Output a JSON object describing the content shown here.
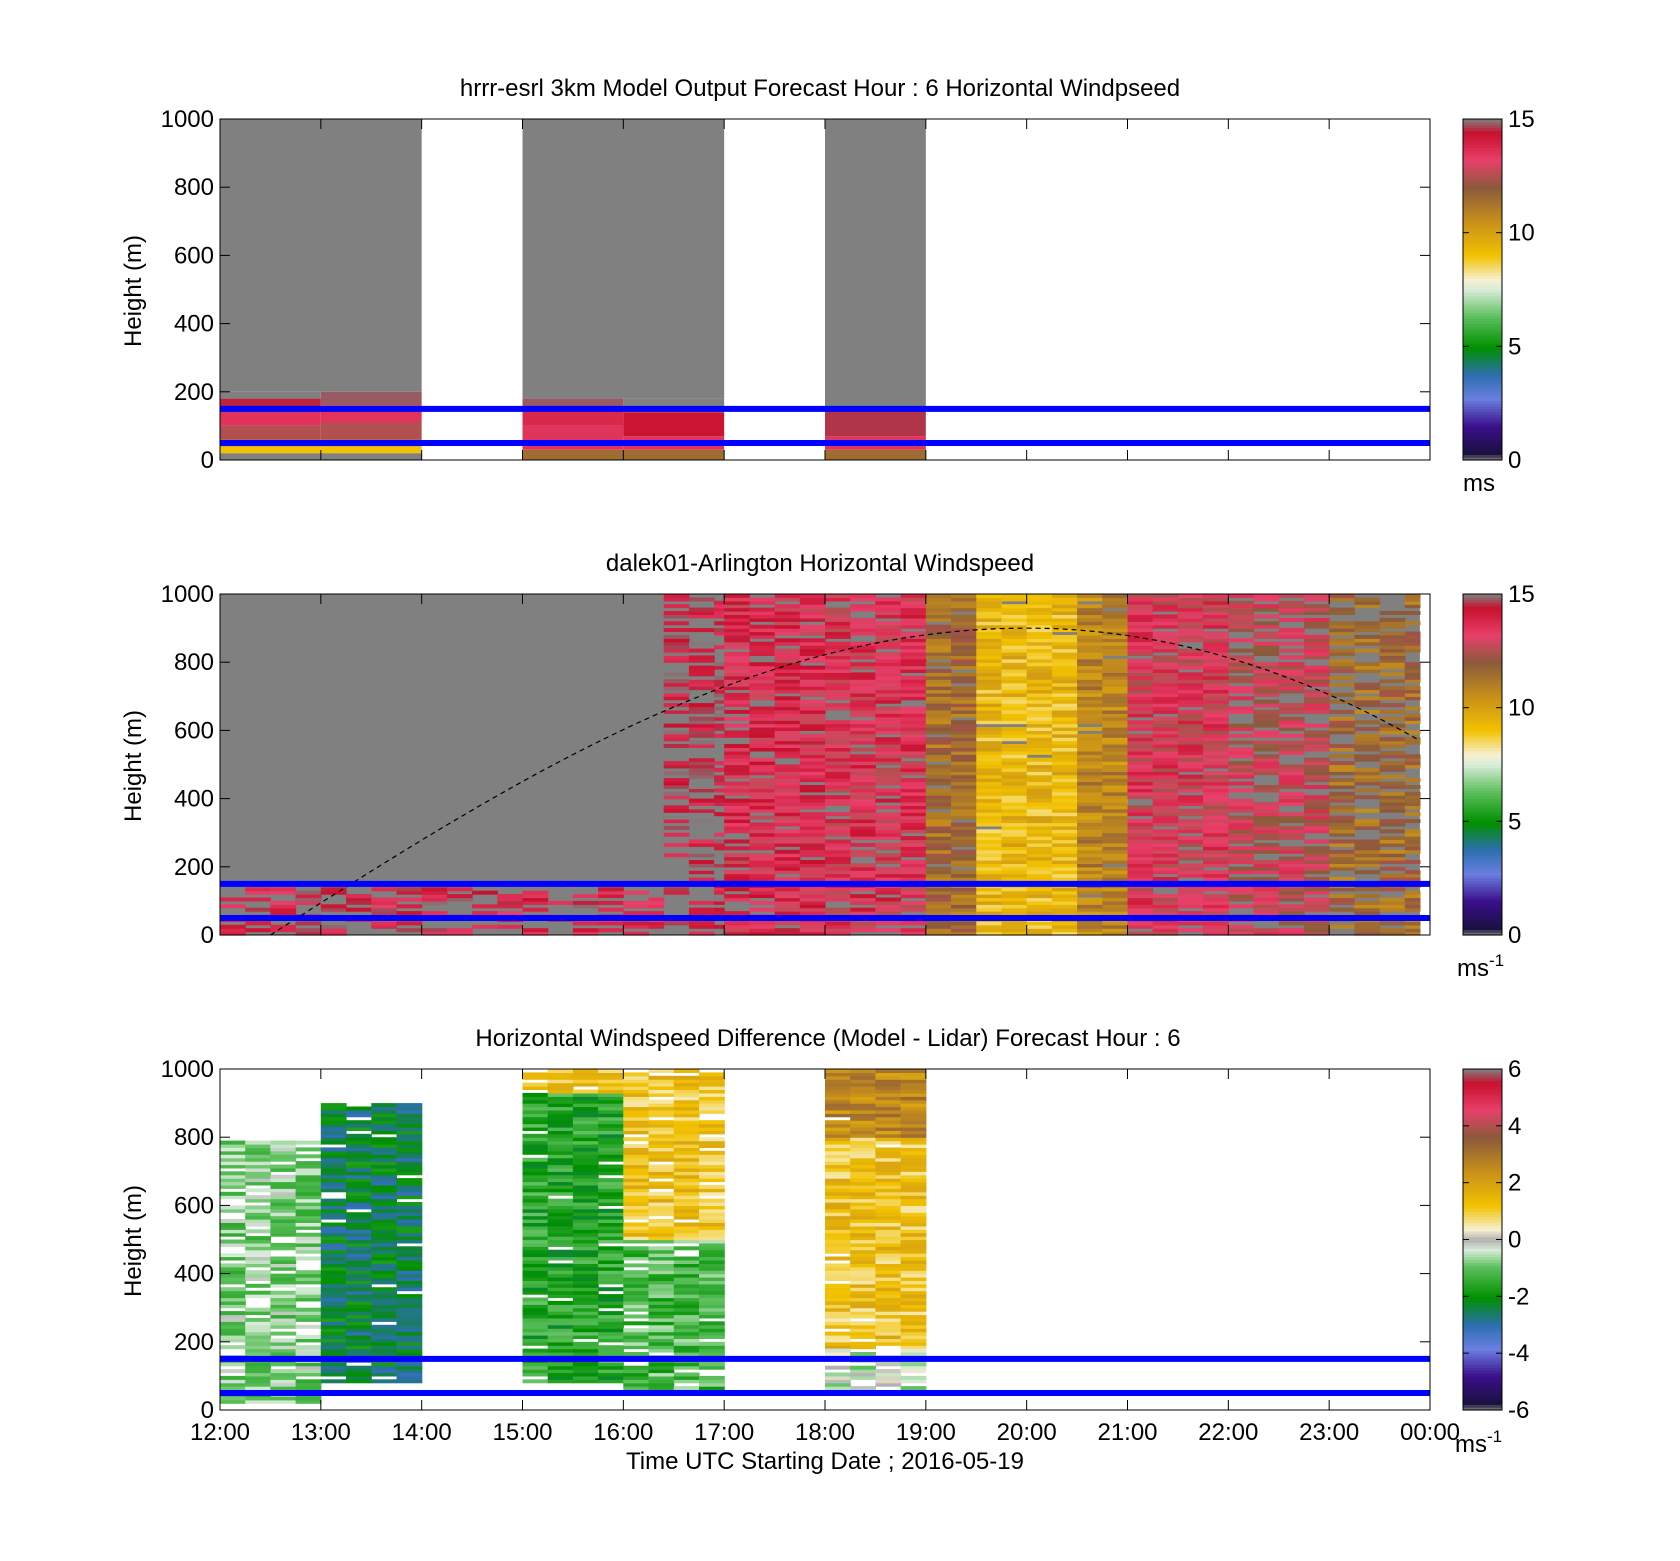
{
  "chart_data": [
    {
      "type": "heatmap",
      "title": "hrrr-esrl 3km Model Output   Forecast Hour : 6 Horizontal Windpseed",
      "ylabel": "Height (m)",
      "ylim": [
        0,
        1000
      ],
      "yticks": [
        "0",
        "200",
        "400",
        "600",
        "800",
        "1000"
      ],
      "xlim": [
        "12:00",
        "00:00"
      ],
      "missing_color": "#808080",
      "colorbar": {
        "range": [
          0,
          15
        ],
        "ticks": [
          "0",
          "5",
          "10",
          "15"
        ],
        "unit": "ms",
        "unit_sup": "",
        "stops": [
          [
            "#808080",
            0
          ],
          [
            "#1a1040",
            0.02
          ],
          [
            "#3b0f8c",
            0.1
          ],
          [
            "#6a7fe0",
            0.18
          ],
          [
            "#2c6fb0",
            0.25
          ],
          [
            "#009000",
            0.33
          ],
          [
            "#5cbf5c",
            0.42
          ],
          [
            "#d9ecd9",
            0.5
          ],
          [
            "#f7f0d0",
            0.53
          ],
          [
            "#f2c200",
            0.6
          ],
          [
            "#c8901a",
            0.7
          ],
          [
            "#8b5a3c",
            0.8
          ],
          [
            "#e8406a",
            0.88
          ],
          [
            "#c8102e",
            0.96
          ],
          [
            "#808080",
            1
          ]
        ]
      },
      "reference_lines_m": [
        50,
        150
      ],
      "cells": [
        {
          "t0": 0,
          "t1": 1,
          "h0": 0,
          "h1": 20,
          "v": 0
        },
        {
          "t0": 0,
          "t1": 1,
          "h0": 20,
          "h1": 40,
          "v": 9
        },
        {
          "t0": 0,
          "t1": 1,
          "h0": 40,
          "h1": 60,
          "v": 11
        },
        {
          "t0": 0,
          "t1": 1,
          "h0": 60,
          "h1": 100,
          "v": 12.5
        },
        {
          "t0": 0,
          "t1": 1,
          "h0": 100,
          "h1": 150,
          "v": 13.5
        },
        {
          "t0": 0,
          "t1": 1,
          "h0": 150,
          "h1": 180,
          "v": 14.5
        },
        {
          "t0": 1,
          "t1": 2,
          "h0": 0,
          "h1": 20,
          "v": 0
        },
        {
          "t0": 1,
          "t1": 2,
          "h0": 20,
          "h1": 40,
          "v": 9
        },
        {
          "t0": 1,
          "t1": 2,
          "h0": 40,
          "h1": 60,
          "v": 11
        },
        {
          "t0": 1,
          "t1": 2,
          "h0": 60,
          "h1": 110,
          "v": 12.5
        },
        {
          "t0": 1,
          "t1": 2,
          "h0": 110,
          "h1": 160,
          "v": 13.5
        },
        {
          "t0": 1,
          "t1": 2,
          "h0": 160,
          "h1": 200,
          "v": 14.8
        },
        {
          "t0": 3,
          "t1": 4,
          "h0": 0,
          "h1": 30,
          "v": 11.5
        },
        {
          "t0": 3,
          "t1": 4,
          "h0": 30,
          "h1": 100,
          "v": 13.5
        },
        {
          "t0": 3,
          "t1": 4,
          "h0": 100,
          "h1": 150,
          "v": 13.8
        },
        {
          "t0": 3,
          "t1": 4,
          "h0": 150,
          "h1": 180,
          "v": 14.8
        },
        {
          "t0": 4,
          "t1": 5,
          "h0": 0,
          "h1": 30,
          "v": 11.5
        },
        {
          "t0": 4,
          "t1": 5,
          "h0": 30,
          "h1": 70,
          "v": 13.5
        },
        {
          "t0": 4,
          "t1": 5,
          "h0": 70,
          "h1": 140,
          "v": 14.3
        },
        {
          "t0": 6,
          "t1": 7,
          "h0": 0,
          "h1": 30,
          "v": 11.5
        },
        {
          "t0": 6,
          "t1": 7,
          "h0": 30,
          "h1": 70,
          "v": 13.5
        },
        {
          "t0": 6,
          "t1": 7,
          "h0": 70,
          "h1": 150,
          "v": 14.6
        }
      ],
      "missing_blocks": [
        {
          "t0": 0,
          "t1": 2,
          "h0": 200,
          "h1": 1000
        },
        {
          "t0": 0,
          "t1": 1,
          "h0": 180,
          "h1": 200
        },
        {
          "t0": 3,
          "t1": 5,
          "h0": 180,
          "h1": 1000
        },
        {
          "t0": 4,
          "t1": 5,
          "h0": 140,
          "h1": 180
        },
        {
          "t0": 6,
          "t1": 7,
          "h0": 150,
          "h1": 1000
        }
      ]
    },
    {
      "type": "heatmap",
      "title": "dalek01-Arlington  Horizontal Windspeed",
      "ylabel": "Height (m)",
      "ylim": [
        0,
        1000
      ],
      "yticks": [
        "0",
        "200",
        "400",
        "600",
        "800",
        "1000"
      ],
      "xlim": [
        "12:00",
        "00:00"
      ],
      "missing_color": "#808080",
      "colorbar": {
        "range": [
          0,
          15
        ],
        "ticks": [
          "0",
          "5",
          "10",
          "15"
        ],
        "unit": "ms",
        "unit_sup": "-1",
        "stops": [
          [
            "#808080",
            0
          ],
          [
            "#1a1040",
            0.02
          ],
          [
            "#3b0f8c",
            0.1
          ],
          [
            "#6a7fe0",
            0.18
          ],
          [
            "#2c6fb0",
            0.25
          ],
          [
            "#009000",
            0.33
          ],
          [
            "#5cbf5c",
            0.42
          ],
          [
            "#d9ecd9",
            0.5
          ],
          [
            "#f7f0d0",
            0.53
          ],
          [
            "#f2c200",
            0.6
          ],
          [
            "#c8901a",
            0.7
          ],
          [
            "#8b5a3c",
            0.8
          ],
          [
            "#e8406a",
            0.88
          ],
          [
            "#c8102e",
            0.96
          ],
          [
            "#808080",
            1
          ]
        ]
      },
      "reference_lines_m": [
        50,
        150
      ],
      "boundary_layer_curve": {
        "peak_time_h": 8,
        "peak_height_m": 900,
        "end_height_m": 570
      },
      "columns": [
        {
          "t0": 0,
          "t1": 4.4,
          "h0": 0,
          "h1": 140,
          "v": 14,
          "sparse": 0.5
        },
        {
          "t0": 4.4,
          "t1": 5.0,
          "h0": 0,
          "h1": 1000,
          "v": 14.3,
          "sparse": 0.45
        },
        {
          "t0": 5.0,
          "t1": 6.0,
          "h0": 0,
          "h1": 1000,
          "v": 13.6,
          "sparse": 0.15
        },
        {
          "t0": 6.0,
          "t1": 7.0,
          "h0": 0,
          "h1": 1000,
          "v": 13.4,
          "sparse": 0.15
        },
        {
          "t0": 7.0,
          "t1": 7.5,
          "h0": 0,
          "h1": 1000,
          "v": 11.5,
          "sparse": 0.05
        },
        {
          "t0": 7.5,
          "t1": 8.5,
          "h0": 0,
          "h1": 1000,
          "v": 9.3,
          "sparse": 0.02
        },
        {
          "t0": 8.5,
          "t1": 9.0,
          "h0": 0,
          "h1": 1000,
          "v": 10.8,
          "sparse": 0.05
        },
        {
          "t0": 9.0,
          "t1": 10.0,
          "h0": 0,
          "h1": 1000,
          "v": 13.2,
          "sparse": 0.1
        },
        {
          "t0": 10.0,
          "t1": 11.0,
          "h0": 0,
          "h1": 1000,
          "v": 12.8,
          "sparse": 0.25
        },
        {
          "t0": 11.0,
          "t1": 11.9,
          "h0": 0,
          "h1": 1000,
          "v": 11.5,
          "sparse": 0.35
        }
      ]
    },
    {
      "type": "heatmap",
      "title": "Horizontal Windspeed Difference (Model - Lidar) Forecast Hour : 6",
      "ylabel": "Height (m)",
      "xlabel": "Time UTC  Starting Date ; 2016-05-19",
      "ylim": [
        0,
        1000
      ],
      "yticks": [
        "0",
        "200",
        "400",
        "600",
        "800",
        "1000"
      ],
      "xticks": [
        "12:00",
        "13:00",
        "14:00",
        "15:00",
        "16:00",
        "17:00",
        "18:00",
        "19:00",
        "20:00",
        "21:00",
        "22:00",
        "23:00",
        "00:00"
      ],
      "missing_color": "#808080",
      "colorbar": {
        "range": [
          -6,
          6
        ],
        "ticks": [
          "-6",
          "-4",
          "-2",
          "0",
          "2",
          "4",
          "6"
        ],
        "unit": "ms",
        "unit_sup": "-1",
        "stops": [
          [
            "#808080",
            0
          ],
          [
            "#1a1040",
            0.02
          ],
          [
            "#3b0f8c",
            0.1
          ],
          [
            "#6a7fe0",
            0.18
          ],
          [
            "#2c6fb0",
            0.25
          ],
          [
            "#009000",
            0.33
          ],
          [
            "#5cbf5c",
            0.42
          ],
          [
            "#d9ecd9",
            0.47
          ],
          [
            "#b0b0b0",
            0.5
          ],
          [
            "#f7f0d0",
            0.53
          ],
          [
            "#f2c200",
            0.6
          ],
          [
            "#c8901a",
            0.7
          ],
          [
            "#8b5a3c",
            0.8
          ],
          [
            "#e8406a",
            0.88
          ],
          [
            "#c8102e",
            0.96
          ],
          [
            "#808080",
            1
          ]
        ]
      },
      "reference_lines_m": [
        50,
        150
      ],
      "columns": [
        {
          "t0": 0,
          "t1": 1,
          "h0": 20,
          "h1": 790,
          "v": -0.8,
          "sparse": 0.2
        },
        {
          "t0": 1,
          "t1": 2,
          "h0": 80,
          "h1": 900,
          "v": -2.4,
          "sparse": 0.05
        },
        {
          "t0": 3,
          "t1": 4,
          "h0": 80,
          "h1": 930,
          "v": -1.6,
          "sparse": 0.05
        },
        {
          "t0": 3,
          "t1": 4,
          "h0": 930,
          "h1": 1000,
          "v": 1.2,
          "sparse": 0.1
        },
        {
          "t0": 4,
          "t1": 5,
          "h0": 60,
          "h1": 500,
          "v": -1.2,
          "sparse": 0.1
        },
        {
          "t0": 4,
          "t1": 5,
          "h0": 500,
          "h1": 1000,
          "v": 1.2,
          "sparse": 0.1
        },
        {
          "t0": 6,
          "t1": 7,
          "h0": 180,
          "h1": 800,
          "v": 1.2,
          "sparse": 0.02
        },
        {
          "t0": 6,
          "t1": 7,
          "h0": 800,
          "h1": 1000,
          "v": 2.6,
          "sparse": 0.02
        },
        {
          "t0": 6,
          "t1": 7,
          "h0": 60,
          "h1": 180,
          "v": -0.3,
          "sparse": 0.2
        }
      ]
    }
  ]
}
